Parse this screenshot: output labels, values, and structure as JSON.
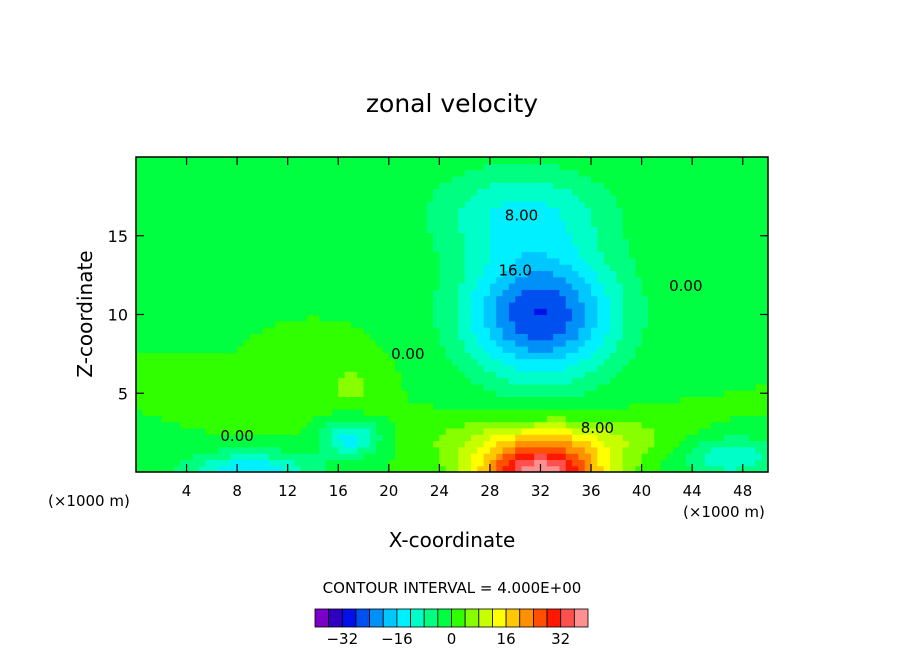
{
  "chart_data": {
    "type": "contour",
    "title": "zonal velocity",
    "xlabel": "X-coordinate",
    "ylabel": "Z-coordinate",
    "x_unit_left": "(×1000 m)",
    "x_unit_right": "(×1000 m)",
    "xlim": [
      0,
      50
    ],
    "ylim": [
      0,
      20
    ],
    "x_ticks": [
      4,
      8,
      12,
      16,
      20,
      24,
      28,
      32,
      36,
      40,
      44,
      48
    ],
    "y_ticks": [
      5,
      10,
      15
    ],
    "contour_interval_text": "CONTOUR INTERVAL = 4.000E+00",
    "contour_interval": 4,
    "contour_labels": [
      {
        "text": "8.00",
        "x": 30.5,
        "y": 16.3
      },
      {
        "text": "16.0",
        "x": 30.0,
        "y": 12.8
      },
      {
        "text": "0.00",
        "x": 43.5,
        "y": 11.8
      },
      {
        "text": "0.00",
        "x": 21.5,
        "y": 7.5
      },
      {
        "text": "0.00",
        "x": 8.0,
        "y": 2.3
      },
      {
        "text": "8.00",
        "x": 36.5,
        "y": 2.8
      }
    ],
    "features": [
      {
        "sign": "negative",
        "peak": -28,
        "x": 32,
        "y": 10,
        "sx": 6,
        "sy": 4
      },
      {
        "sign": "negative",
        "peak": -12,
        "x": 30.5,
        "y": 16.5,
        "sx": 7,
        "sy": 3
      },
      {
        "sign": "positive",
        "peak": 38,
        "x": 32,
        "y": 0,
        "sx": 5,
        "sy": 1.8
      },
      {
        "sign": "positive",
        "peak": 10,
        "x": 33,
        "y": 2.2,
        "sx": 9,
        "sy": 1.4
      },
      {
        "sign": "negative",
        "peak": -16,
        "x": 9,
        "y": 0,
        "sx": 5,
        "sy": 1.3
      },
      {
        "sign": "negative",
        "peak": -14,
        "x": 17,
        "y": 2.2,
        "sx": 2.3,
        "sy": 1.2
      },
      {
        "sign": "negative",
        "peak": -12,
        "x": 47,
        "y": 1,
        "sx": 4,
        "sy": 1.3
      },
      {
        "sign": "positive",
        "peak": 5,
        "x": 17,
        "y": 5.5,
        "sx": 2.5,
        "sy": 1.8
      },
      {
        "sign": "positive",
        "peak": 4,
        "x": 10,
        "y": 3.5,
        "sx": 3,
        "sy": 1
      }
    ],
    "colorbar": {
      "tick_labels": [
        "−32",
        "−16",
        "0",
        "16",
        "32"
      ],
      "tick_values": [
        -32,
        -16,
        0,
        16,
        32
      ],
      "levels": [
        -40,
        -36,
        -32,
        -28,
        -24,
        -20,
        -16,
        -12,
        -8,
        -4,
        0,
        4,
        8,
        12,
        16,
        20,
        24,
        28,
        32,
        36,
        40
      ],
      "colors": [
        "#7a00c8",
        "#3000c0",
        "#0010e8",
        "#0050f0",
        "#0090f8",
        "#00c8ff",
        "#00f0ff",
        "#00ffc8",
        "#00ff80",
        "#00ff40",
        "#30ff00",
        "#88ff00",
        "#c8ff00",
        "#ffff00",
        "#ffc800",
        "#ff9000",
        "#ff5000",
        "#ff1800",
        "#ff5050",
        "#ff9090"
      ]
    }
  }
}
